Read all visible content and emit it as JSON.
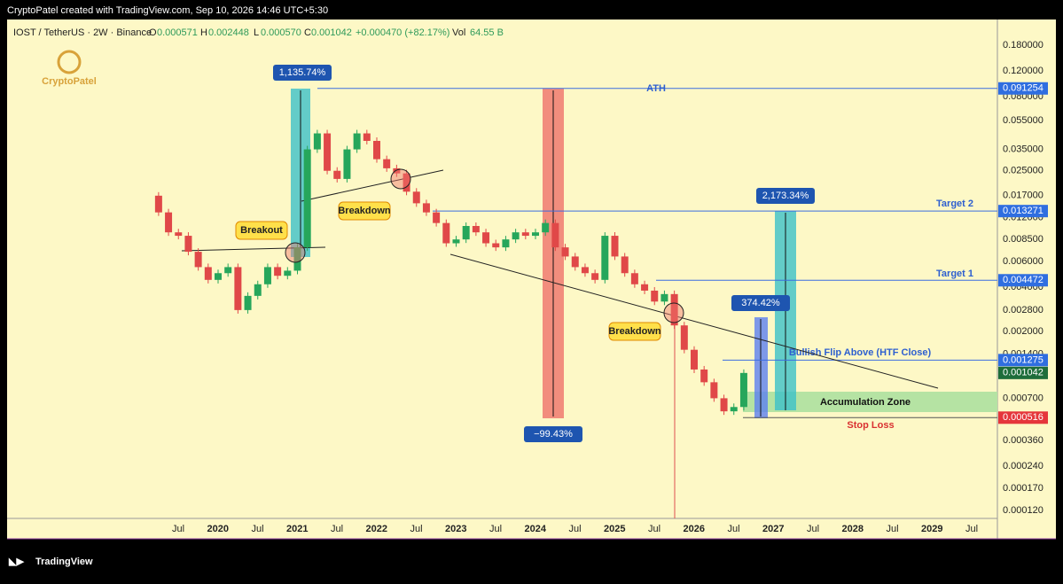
{
  "header": {
    "attribution": "CryptoPatel created with TradingView.com, Sep 10, 2026 14:46 UTC+5:30"
  },
  "legend": {
    "symbol": "IOST / TetherUS · 2W · Binance",
    "open_label": "O",
    "open": "0.000571",
    "high_label": "H",
    "high": "0.002448",
    "low_label": "L",
    "low": "0.000570",
    "close_label": "C",
    "close": "0.001042",
    "change": "+0.000470 (+82.17%)",
    "volume_label": "Vol",
    "volume": "64.55 B"
  },
  "watermark": "CryptoPatel",
  "price_axis": [
    "0.180000",
    "0.120000",
    "0.080000",
    "0.055000",
    "0.035000",
    "0.025000",
    "0.017000",
    "0.012000",
    "0.008500",
    "0.006000",
    "0.004000",
    "0.002800",
    "0.002000",
    "0.001400",
    "0.000700",
    "0.000360",
    "0.000240",
    "0.000170",
    "0.000120"
  ],
  "time_axis": [
    "Jul",
    "2020",
    "Jul",
    "2021",
    "Jul",
    "2022",
    "Jul",
    "2023",
    "Jul",
    "2024",
    "Jul",
    "2025",
    "Jul",
    "2026",
    "Jul",
    "2027",
    "Jul",
    "2028",
    "Jul",
    "2029",
    "Jul"
  ],
  "levels": [
    {
      "label": "ATH",
      "badge": "0.091254"
    },
    {
      "label": "Target 2",
      "badge": "0.013271"
    },
    {
      "label": "Target 1",
      "badge": "0.004472"
    },
    {
      "label": "Bullish Flip Above (HTF Close)",
      "badge": "0.001275"
    },
    {
      "label": "Stop Loss",
      "badge": "0.000516"
    }
  ],
  "current_price": "0.001042",
  "measures": [
    "1,135.74%",
    "−99.43%",
    "374.42%",
    "2,173.34%"
  ],
  "callouts": [
    "Breakout",
    "Breakdown",
    "Breakdown"
  ],
  "zone": "Accumulation Zone",
  "closes": [
    0.013,
    0.0095,
    0.009,
    0.007,
    0.0055,
    0.0045,
    0.005,
    0.0055,
    0.0028,
    0.0035,
    0.0042,
    0.0055,
    0.0048,
    0.0052,
    0.0075,
    0.035,
    0.045,
    0.025,
    0.022,
    0.035,
    0.045,
    0.04,
    0.03,
    0.026,
    0.024,
    0.018,
    0.015,
    0.013,
    0.011,
    0.008,
    0.0085,
    0.0105,
    0.0095,
    0.008,
    0.0075,
    0.0085,
    0.0095,
    0.009,
    0.0095,
    0.011,
    0.0075,
    0.0065,
    0.0055,
    0.005,
    0.0045,
    0.009,
    0.0065,
    0.005,
    0.0042,
    0.0038,
    0.0032,
    0.0036,
    0.0022,
    0.0015,
    0.0011,
    0.0009,
    0.0007,
    0.00057,
    0.00061,
    0.001042
  ],
  "footer": {
    "brand": "TradingView"
  }
}
